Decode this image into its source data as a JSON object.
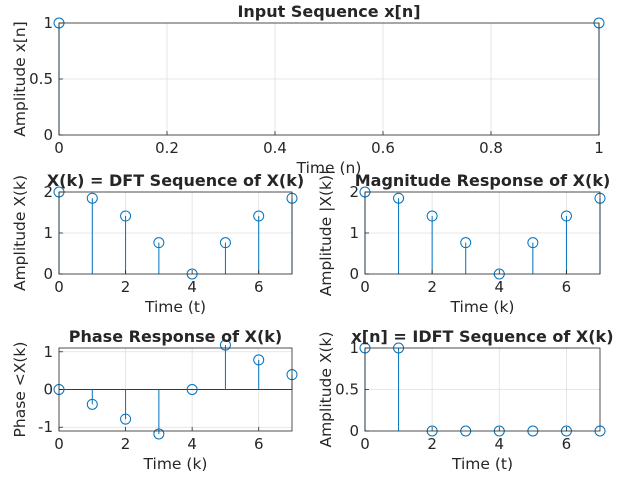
{
  "chart_data": [
    {
      "type": "stem",
      "title": "Input Sequence x[n]",
      "xlabel": "Time (n)",
      "ylabel": "Amplitude x[n]",
      "xlim": [
        0,
        1
      ],
      "ylim": [
        0,
        1
      ],
      "xticks": [
        0,
        0.2,
        0.4,
        0.6,
        0.8,
        1
      ],
      "xticklabels": [
        "0",
        "0.2",
        "0.4",
        "0.6",
        "0.8",
        "1"
      ],
      "yticks": [
        0,
        0.5,
        1
      ],
      "yticklabels": [
        "0",
        "0.5",
        "1"
      ],
      "grid": true,
      "x": [
        0,
        1
      ],
      "y": [
        1,
        1
      ]
    },
    {
      "type": "stem",
      "title": "X(k) = DFT Sequence of X(k)",
      "xlabel": "Time (t)",
      "ylabel": "Amplitude X(k)",
      "xlim": [
        0,
        7
      ],
      "ylim": [
        0,
        2
      ],
      "xticks": [
        0,
        2,
        4,
        6
      ],
      "xticklabels": [
        "0",
        "2",
        "4",
        "6"
      ],
      "yticks": [
        0,
        1,
        2
      ],
      "yticklabels": [
        "0",
        "1",
        "2"
      ],
      "grid": true,
      "x": [
        0,
        1,
        2,
        3,
        4,
        5,
        6,
        7
      ],
      "y": [
        2,
        1.848,
        1.414,
        0.765,
        0,
        0.765,
        1.414,
        1.848
      ]
    },
    {
      "type": "stem",
      "title": "Magnitude Response of X(k)",
      "xlabel": "Time (k)",
      "ylabel": "Amplitude |X(k)|",
      "xlim": [
        0,
        7
      ],
      "ylim": [
        0,
        2
      ],
      "xticks": [
        0,
        2,
        4,
        6
      ],
      "xticklabels": [
        "0",
        "2",
        "4",
        "6"
      ],
      "yticks": [
        0,
        1,
        2
      ],
      "yticklabels": [
        "0",
        "1",
        "2"
      ],
      "grid": true,
      "x": [
        0,
        1,
        2,
        3,
        4,
        5,
        6,
        7
      ],
      "y": [
        2,
        1.848,
        1.414,
        0.765,
        0,
        0.765,
        1.414,
        1.848
      ]
    },
    {
      "type": "stem",
      "title": "Phase Response of X(k)",
      "xlabel": "Time (k)",
      "ylabel": "Phase <X(k)",
      "xlim": [
        0,
        7
      ],
      "ylim": [
        -1.1,
        1.1
      ],
      "xticks": [
        0,
        2,
        4,
        6
      ],
      "xticklabels": [
        "0",
        "2",
        "4",
        "6"
      ],
      "yticks": [
        -1,
        0,
        1
      ],
      "yticklabels": [
        "-1",
        "0",
        "1"
      ],
      "grid": true,
      "x": [
        0,
        1,
        2,
        3,
        4,
        5,
        6,
        7
      ],
      "y": [
        0,
        -0.393,
        -0.785,
        -1.178,
        0,
        1.178,
        0.785,
        0.393
      ]
    },
    {
      "type": "stem",
      "title": "x[n] = IDFT Sequence of X(k)",
      "xlabel": "Time (t)",
      "ylabel": "Amplitude X(k)",
      "xlim": [
        0,
        7
      ],
      "ylim": [
        0,
        1
      ],
      "xticks": [
        0,
        2,
        4,
        6
      ],
      "xticklabels": [
        "0",
        "2",
        "4",
        "6"
      ],
      "yticks": [
        0,
        0.5,
        1
      ],
      "yticklabels": [
        "0",
        "0.5",
        "1"
      ],
      "grid": true,
      "x": [
        0,
        1,
        2,
        3,
        4,
        5,
        6,
        7
      ],
      "y": [
        1,
        1,
        0,
        0,
        0,
        0,
        0,
        0
      ]
    }
  ],
  "colors": {
    "stem": "#0072bd",
    "grid": "#dfdfdf",
    "axis": "#262626"
  }
}
